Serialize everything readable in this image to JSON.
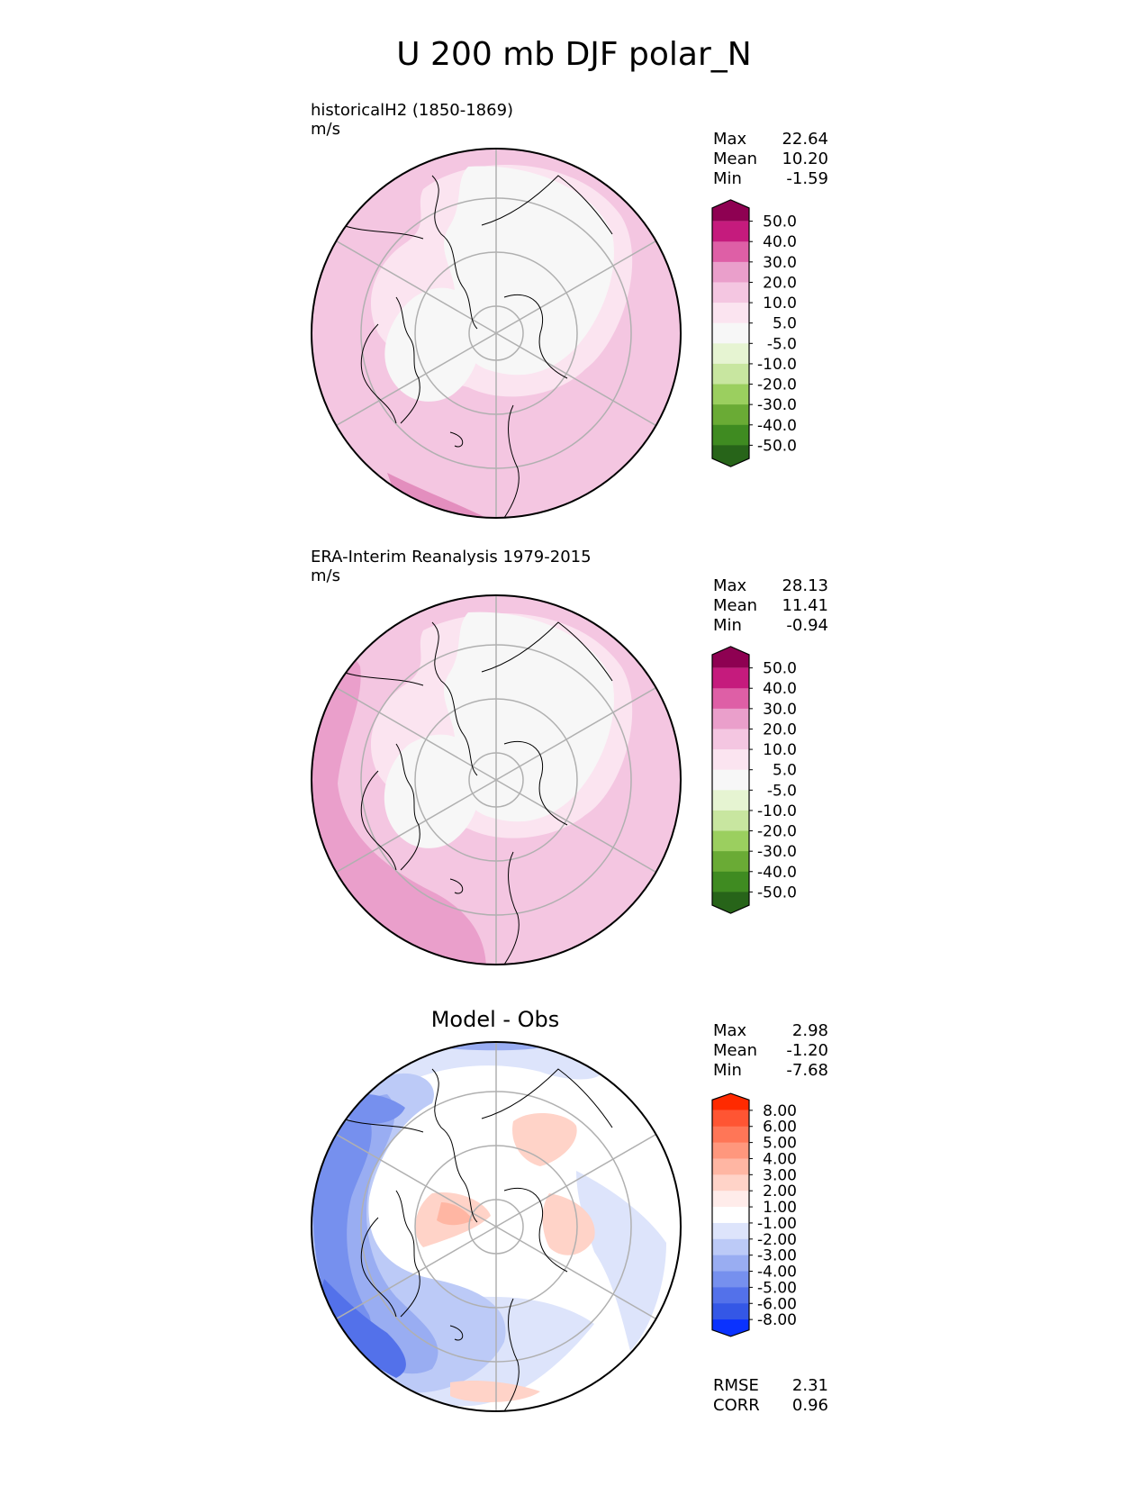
{
  "title": "U 200 mb DJF polar_N",
  "panels": [
    {
      "id": "test",
      "label": "historicalH2 (1850-1869)",
      "units": "m/s",
      "stats": [
        {
          "name": "Max",
          "value": "22.64"
        },
        {
          "name": "Mean",
          "value": "10.20"
        },
        {
          "name": "Min",
          "value": "-1.59"
        }
      ],
      "colorbar": {
        "ticks": [
          "50.0",
          "40.0",
          "30.0",
          "20.0",
          "10.0",
          "5.0",
          "-5.0",
          "-10.0",
          "-20.0",
          "-30.0",
          "-40.0",
          "-50.0"
        ],
        "colors": [
          "#8e0152",
          "#c51b7d",
          "#de5fa6",
          "#ea9fcb",
          "#f4c6e1",
          "#fbe4f0",
          "#f7f7f7",
          "#e6f4d2",
          "#c8e6a0",
          "#9bcf5f",
          "#6aab35",
          "#3f8b21",
          "#276419"
        ]
      }
    },
    {
      "id": "ref",
      "label": "ERA-Interim Reanalysis 1979-2015",
      "units": "m/s",
      "stats": [
        {
          "name": "Max",
          "value": "28.13"
        },
        {
          "name": "Mean",
          "value": "11.41"
        },
        {
          "name": "Min",
          "value": "-0.94"
        }
      ],
      "colorbar": {
        "ticks": [
          "50.0",
          "40.0",
          "30.0",
          "20.0",
          "10.0",
          "5.0",
          "-5.0",
          "-10.0",
          "-20.0",
          "-30.0",
          "-40.0",
          "-50.0"
        ],
        "colors": [
          "#8e0152",
          "#c51b7d",
          "#de5fa6",
          "#ea9fcb",
          "#f4c6e1",
          "#fbe4f0",
          "#f7f7f7",
          "#e6f4d2",
          "#c8e6a0",
          "#9bcf5f",
          "#6aab35",
          "#3f8b21",
          "#276419"
        ]
      }
    },
    {
      "id": "diff",
      "title": "Model - Obs",
      "stats": [
        {
          "name": "Max",
          "value": "2.98"
        },
        {
          "name": "Mean",
          "value": "-1.20"
        },
        {
          "name": "Min",
          "value": "-7.68"
        }
      ],
      "colorbar": {
        "ticks": [
          "8.00",
          "6.00",
          "5.00",
          "4.00",
          "3.00",
          "2.00",
          "1.00",
          "-1.00",
          "-2.00",
          "-3.00",
          "-4.00",
          "-5.00",
          "-6.00",
          "-8.00"
        ],
        "colors": [
          "#ff2a00",
          "#ff5533",
          "#ff7657",
          "#ff977d",
          "#ffb6a3",
          "#ffd3c8",
          "#ffecea",
          "#ffffff",
          "#dde4fb",
          "#bccaf7",
          "#99adf2",
          "#7690ee",
          "#5371ea",
          "#3457e6",
          "#0a32ff"
        ]
      },
      "extra_stats": [
        {
          "name": "RMSE",
          "value": "2.31"
        },
        {
          "name": "CORR",
          "value": "0.96"
        }
      ]
    }
  ],
  "map": {
    "projection": "north-polar-stereographic",
    "gridline_color": "#b0b0b0",
    "coastline_color": "#000000"
  }
}
